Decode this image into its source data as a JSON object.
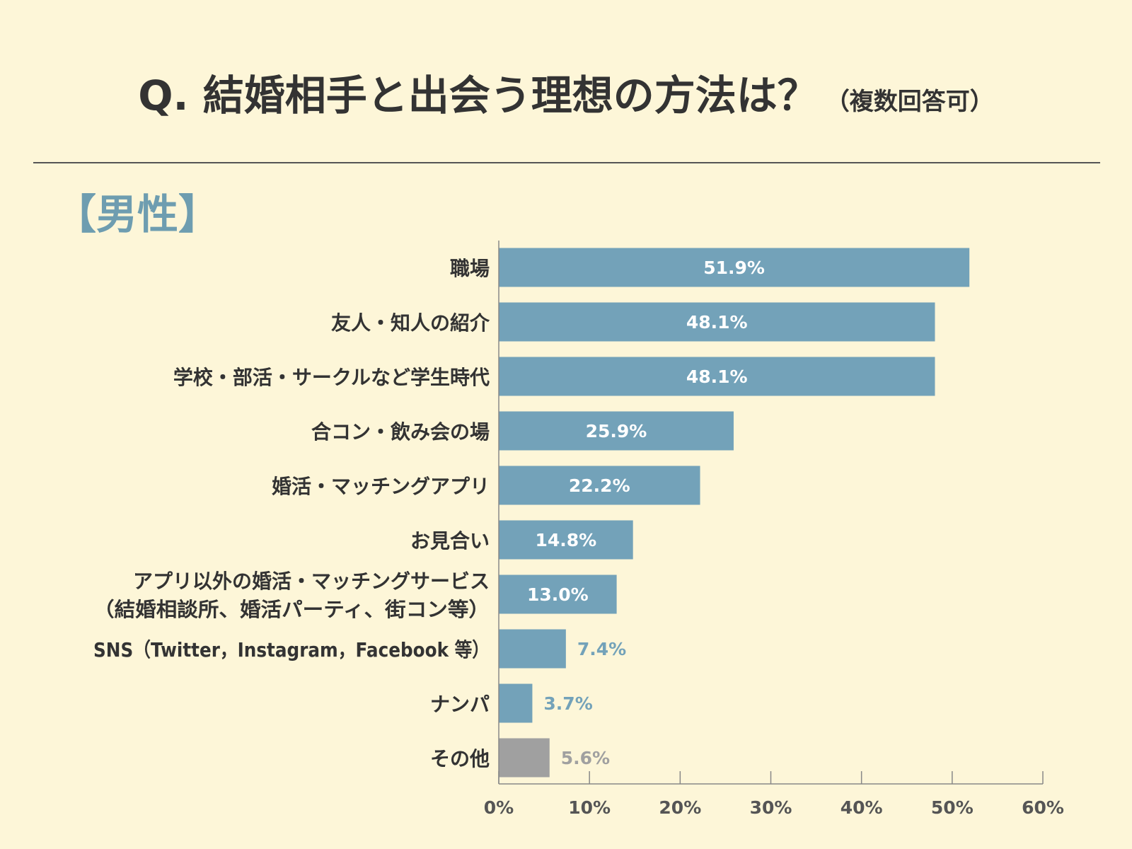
{
  "title": {
    "main": "Q. 結婚相手と出会う理想の方法は？",
    "sub": "（複数回答可）"
  },
  "section_label": "【男性】",
  "colors": {
    "background": "#fdf6d8",
    "bar": "#73a2b9",
    "bar_other": "#a0a0a0",
    "axis": "#888888",
    "text": "#333333"
  },
  "chart_data": {
    "type": "bar",
    "orientation": "horizontal",
    "categories": [
      [
        "職場"
      ],
      [
        "友人・知人の紹介"
      ],
      [
        "学校・部活・サークルなど学生時代"
      ],
      [
        "合コン・飲み会の場"
      ],
      [
        "婚活・マッチングアプリ"
      ],
      [
        "お見合い"
      ],
      [
        "アプリ以外の婚活・マッチングサービス",
        "（結婚相談所、婚活パーティ、街コン等）"
      ],
      [
        "SNS（Twitter，Instagram，Facebook 等）"
      ],
      [
        "ナンパ"
      ],
      [
        "その他"
      ]
    ],
    "values": [
      51.9,
      48.1,
      48.1,
      25.9,
      22.2,
      14.8,
      13.0,
      7.4,
      3.7,
      5.6
    ],
    "value_labels": [
      "51.9%",
      "48.1%",
      "48.1%",
      "25.9%",
      "22.2%",
      "14.8%",
      "13.0%",
      "7.4%",
      "3.7%",
      "5.6%"
    ],
    "xlim": [
      0,
      60
    ],
    "xticks": [
      0,
      10,
      20,
      30,
      40,
      50,
      60
    ],
    "xtick_labels": [
      "0%",
      "10%",
      "20%",
      "30%",
      "40%",
      "50%",
      "60%"
    ],
    "highlight_last_gray": true,
    "grid": false
  }
}
